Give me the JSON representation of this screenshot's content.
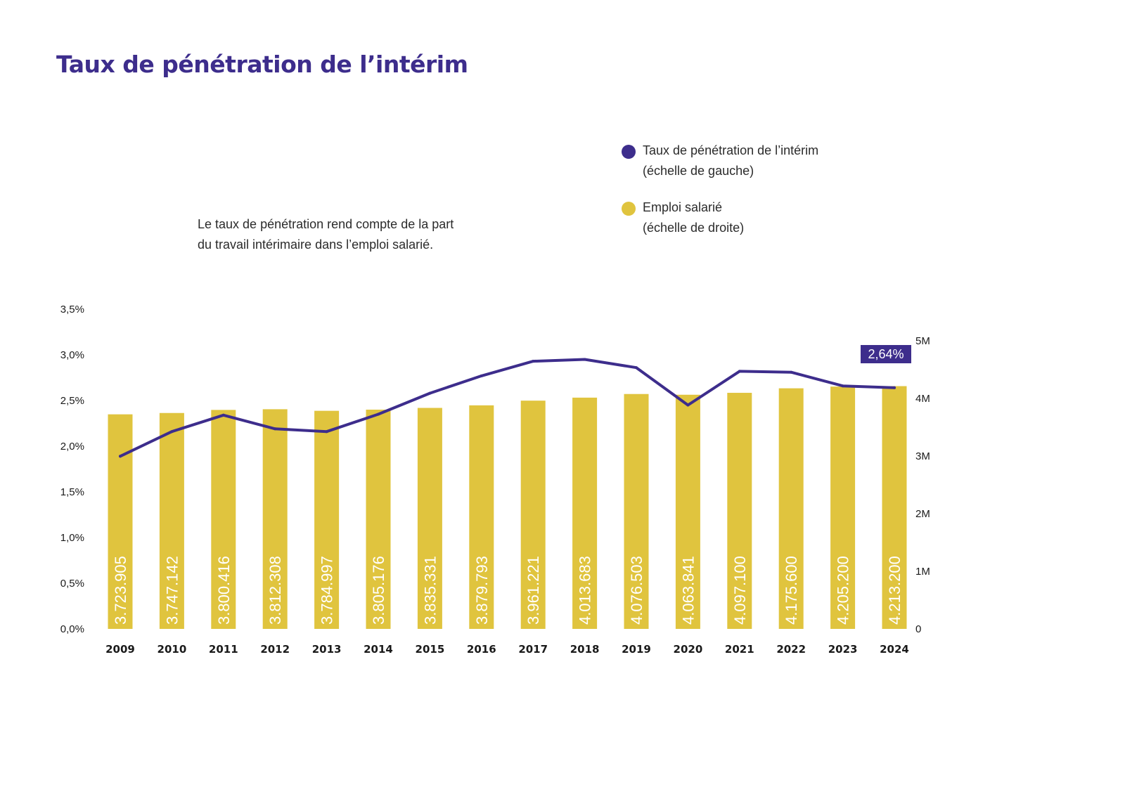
{
  "title": "Taux de pénétration de l’intérim",
  "note": {
    "line1": "Le taux de pénétration rend compte de la part",
    "line2": "du travail intérimaire dans l’emploi salarié."
  },
  "legend": [
    {
      "line1": "Taux de pénétration de l’intérim",
      "line2": "(échelle de gauche)",
      "color": "#3d2d8c",
      "icon": "circle-icon"
    },
    {
      "line1": "Emploi salarié",
      "line2": "(échelle de droite)",
      "color": "#e0c43e",
      "icon": "circle-icon"
    }
  ],
  "colors": {
    "title": "#3d2d8c",
    "line": "#3d2d8c",
    "bar": "#e0c43e"
  },
  "chart_data": {
    "type": "bar+line",
    "categories": [
      "2009",
      "2010",
      "2011",
      "2012",
      "2013",
      "2014",
      "2015",
      "2016",
      "2017",
      "2018",
      "2019",
      "2020",
      "2021",
      "2022",
      "2023",
      "2024"
    ],
    "left_axis": {
      "ticks": [
        "0,0%",
        "0,5%",
        "1,0%",
        "1,5%",
        "2,0%",
        "2,5%",
        "3,0%",
        "3,5%"
      ],
      "range": [
        0,
        3.5
      ]
    },
    "right_axis": {
      "ticks": [
        "0",
        "1M",
        "2M",
        "3M",
        "4M",
        "5M"
      ],
      "range": [
        0,
        5000000
      ]
    },
    "bars": {
      "axis": "right",
      "values": [
        3723905,
        3747142,
        3800416,
        3812308,
        3784997,
        3805176,
        3835331,
        3879793,
        3961221,
        4013683,
        4076503,
        4063841,
        4097100,
        4175600,
        4205200,
        4213200
      ],
      "labels": [
        "3.723.905",
        "3.747.142",
        "3.800.416",
        "3.812.308",
        "3.784.997",
        "3.805.176",
        "3.835.331",
        "3.879.793",
        "3.961.221",
        "4.013.683",
        "4.076.503",
        "4.063.841",
        "4.097.100",
        "4.175.600",
        "4.205.200",
        "4.213.200"
      ]
    },
    "line": {
      "axis": "left",
      "values": [
        1.89,
        2.16,
        2.34,
        2.19,
        2.16,
        2.35,
        2.58,
        2.77,
        2.93,
        2.95,
        2.86,
        2.45,
        2.82,
        2.81,
        2.66,
        2.64
      ],
      "callout": "2,64%"
    },
    "grid": false,
    "legend_position": "top-right"
  }
}
